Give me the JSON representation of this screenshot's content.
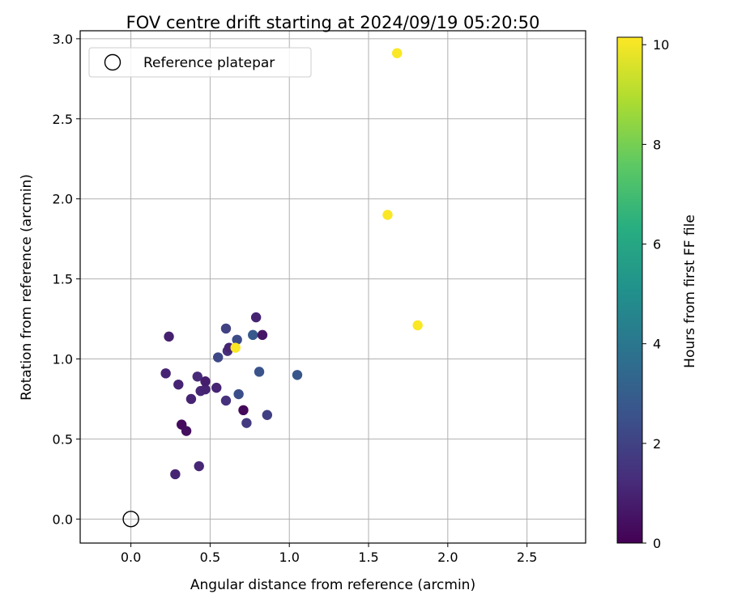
{
  "chart_data": {
    "type": "scatter",
    "title": "FOV centre drift starting at 2024/09/19 05:20:50",
    "xlabel": "Angular distance from reference (arcmin)",
    "ylabel": "Rotation from reference (arcmin)",
    "xlim": [
      -0.32,
      2.87
    ],
    "ylim": [
      -0.15,
      3.05
    ],
    "xticks": [
      0.0,
      0.5,
      1.0,
      1.5,
      2.0,
      2.5
    ],
    "yticks": [
      0.0,
      0.5,
      1.0,
      1.5,
      2.0,
      2.5,
      3.0
    ],
    "xtick_labels": [
      "0.0",
      "0.5",
      "1.0",
      "1.5",
      "2.0",
      "2.5"
    ],
    "ytick_labels": [
      "0.0",
      "0.5",
      "1.0",
      "1.5",
      "2.0",
      "2.5",
      "3.0"
    ],
    "grid": true,
    "legend": {
      "position": "upper-left",
      "label": "Reference platepar",
      "marker": "open-circle"
    },
    "reference_point": {
      "x": 0.0,
      "y": 0.0
    },
    "colorbar": {
      "label": "Hours from first FF file",
      "colormap": "viridis",
      "range": [
        0,
        10.15
      ],
      "ticks": [
        0,
        2,
        4,
        6,
        8,
        10
      ],
      "tick_labels": [
        "0",
        "2",
        "4",
        "6",
        "8",
        "10"
      ]
    },
    "points": [
      {
        "x": 0.24,
        "y": 1.14,
        "h": 0.9
      },
      {
        "x": 0.22,
        "y": 0.91,
        "h": 1.0
      },
      {
        "x": 0.3,
        "y": 0.84,
        "h": 1.0
      },
      {
        "x": 0.32,
        "y": 0.59,
        "h": 0.3
      },
      {
        "x": 0.35,
        "y": 0.55,
        "h": 0.4
      },
      {
        "x": 0.28,
        "y": 0.28,
        "h": 1.0
      },
      {
        "x": 0.43,
        "y": 0.33,
        "h": 1.1
      },
      {
        "x": 0.38,
        "y": 0.75,
        "h": 1.0
      },
      {
        "x": 0.42,
        "y": 0.89,
        "h": 1.2
      },
      {
        "x": 0.44,
        "y": 0.8,
        "h": 1.1
      },
      {
        "x": 0.47,
        "y": 0.81,
        "h": 1.0
      },
      {
        "x": 0.47,
        "y": 0.86,
        "h": 0.8
      },
      {
        "x": 0.54,
        "y": 0.82,
        "h": 1.0
      },
      {
        "x": 0.55,
        "y": 1.01,
        "h": 2.2
      },
      {
        "x": 0.6,
        "y": 1.19,
        "h": 2.0
      },
      {
        "x": 0.61,
        "y": 1.05,
        "h": 1.3
      },
      {
        "x": 0.62,
        "y": 1.07,
        "h": 1.0
      },
      {
        "x": 0.6,
        "y": 0.74,
        "h": 1.4
      },
      {
        "x": 0.67,
        "y": 1.12,
        "h": 2.3
      },
      {
        "x": 0.66,
        "y": 1.07,
        "h": 10.1
      },
      {
        "x": 0.68,
        "y": 0.78,
        "h": 2.4
      },
      {
        "x": 0.71,
        "y": 0.68,
        "h": 0.2
      },
      {
        "x": 0.73,
        "y": 0.6,
        "h": 1.7
      },
      {
        "x": 0.77,
        "y": 1.15,
        "h": 2.8
      },
      {
        "x": 0.79,
        "y": 1.26,
        "h": 1.0
      },
      {
        "x": 0.83,
        "y": 1.15,
        "h": 0.6
      },
      {
        "x": 0.81,
        "y": 0.92,
        "h": 2.6
      },
      {
        "x": 0.86,
        "y": 0.65,
        "h": 1.9
      },
      {
        "x": 1.05,
        "y": 0.9,
        "h": 2.7
      },
      {
        "x": 1.62,
        "y": 1.9,
        "h": 10.1
      },
      {
        "x": 1.68,
        "y": 2.91,
        "h": 10.1
      },
      {
        "x": 1.81,
        "y": 1.21,
        "h": 10.1
      }
    ]
  }
}
